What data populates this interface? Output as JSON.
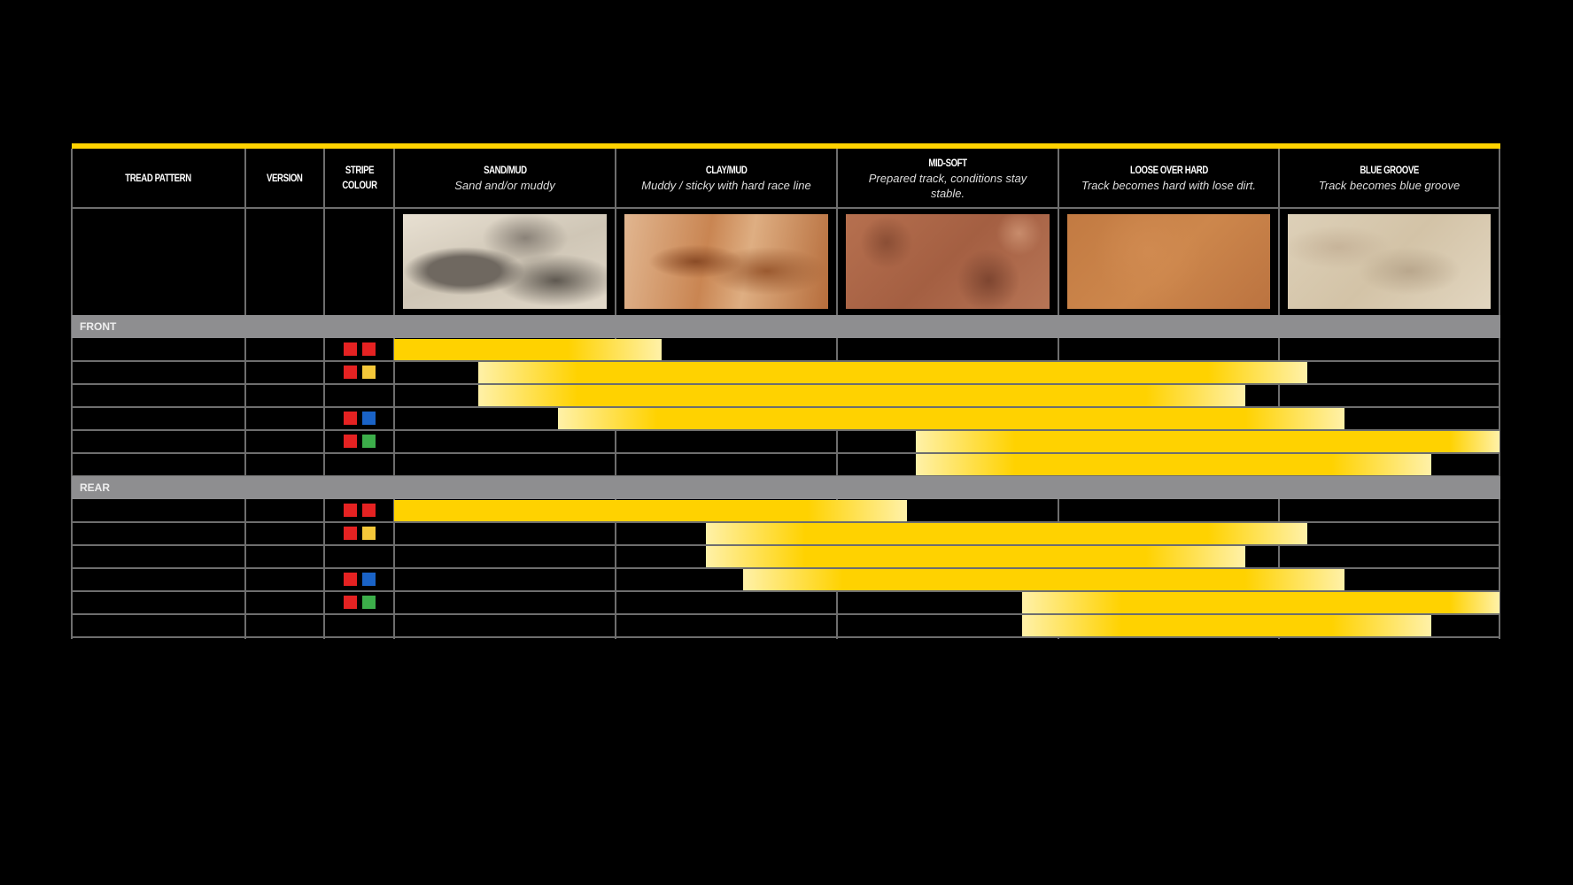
{
  "chart_data": {
    "type": "table",
    "columns": [
      {
        "title": "TREAD PATTERN"
      },
      {
        "title": "VERSION"
      },
      {
        "title": "STRIPE COLOUR"
      },
      {
        "title": "SAND/MUD",
        "subtitle": "Sand and/or muddy"
      },
      {
        "title": "CLAY/MUD",
        "subtitle": "Muddy / sticky with hard race line"
      },
      {
        "title": "MID-SOFT",
        "subtitle": "Prepared track, conditions stay stable."
      },
      {
        "title": "LOOSE OVER HARD",
        "subtitle": "Track becomes hard with lose dirt."
      },
      {
        "title": "BLUE GROOVE",
        "subtitle": "Track becomes blue groove"
      }
    ],
    "condition_range_units": "condition columns from start of SAND/MUD (0) to end of BLUE GROOVE (5)",
    "sections": [
      {
        "label": "FRONT",
        "rows": [
          {
            "stripe": [
              "#e52222",
              "#e52222"
            ],
            "range": [
              0,
              1.21
            ]
          },
          {
            "stripe": [
              "#e52222",
              "#f5c83a"
            ],
            "range": [
              0.38,
              4.13
            ]
          },
          {
            "stripe": [],
            "range": [
              0.38,
              3.85
            ]
          },
          {
            "stripe": [
              "#e52222",
              "#1a63c7"
            ],
            "range": [
              0.74,
              4.3
            ]
          },
          {
            "stripe": [
              "#e52222",
              "#3cae4a"
            ],
            "range": [
              2.36,
              5
            ]
          },
          {
            "stripe": [],
            "range": [
              2.36,
              4.69
            ]
          }
        ]
      },
      {
        "label": "REAR",
        "rows": [
          {
            "stripe": [
              "#e52222",
              "#e52222"
            ],
            "range": [
              0,
              2.32
            ]
          },
          {
            "stripe": [
              "#e52222",
              "#f5c83a"
            ],
            "range": [
              1.41,
              4.13
            ]
          },
          {
            "stripe": [],
            "range": [
              1.41,
              3.85
            ]
          },
          {
            "stripe": [
              "#e52222",
              "#1a63c7"
            ],
            "range": [
              1.58,
              4.3
            ]
          },
          {
            "stripe": [
              "#e52222",
              "#3cae4a"
            ],
            "range": [
              2.84,
              5
            ]
          },
          {
            "stripe": [],
            "range": [
              2.84,
              4.69
            ]
          }
        ]
      }
    ],
    "colors": {
      "accent": "#ffd200",
      "bar_light": "#fff1a8",
      "section_bg": "#8e8e90"
    }
  }
}
